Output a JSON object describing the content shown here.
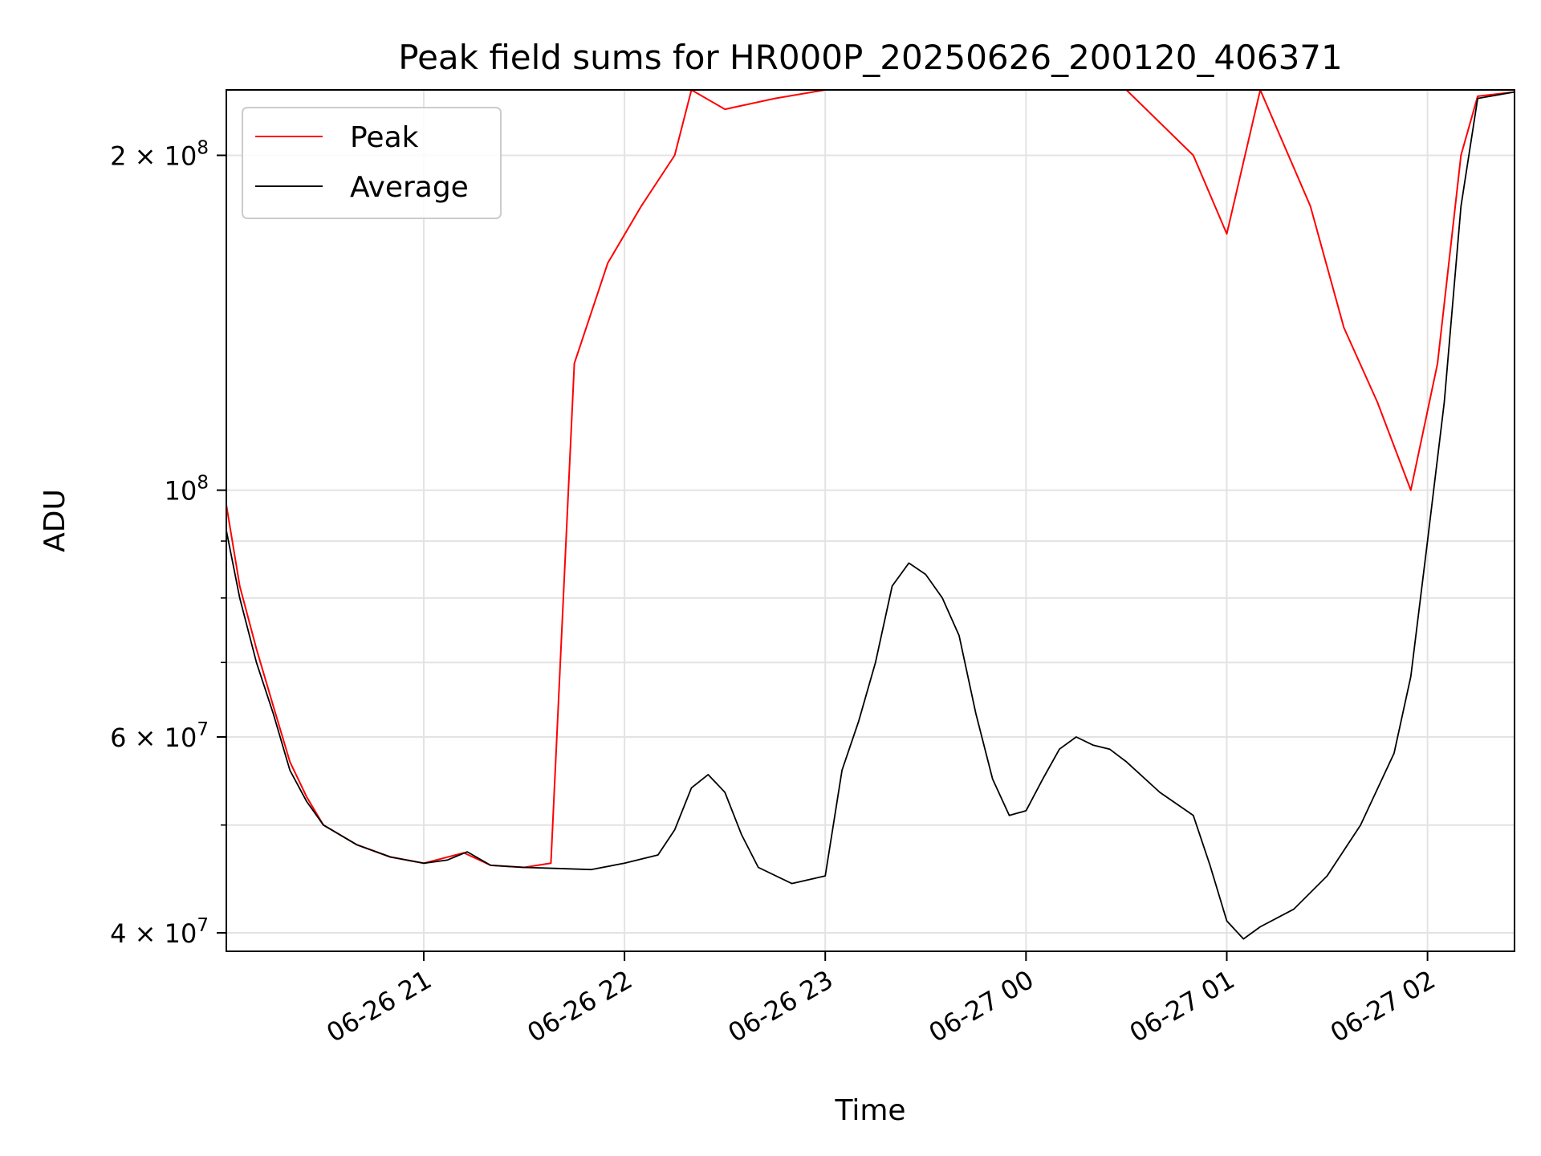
{
  "chart_data": {
    "type": "line",
    "title": "Peak field sums for HR000P_20250626_200120_406371",
    "xlabel": "Time",
    "ylabel": "ADU",
    "yscale": "log",
    "grid": true,
    "legend_position": "top-left",
    "xlim": [
      "2025-06-26 20:01",
      "2025-06-27 02:26"
    ],
    "ylim": [
      38500000,
      229000000
    ],
    "x_ticks": [
      {
        "value": "2025-06-26 21:00",
        "label": "06-26 21"
      },
      {
        "value": "2025-06-26 22:00",
        "label": "06-26 22"
      },
      {
        "value": "2025-06-26 23:00",
        "label": "06-26 23"
      },
      {
        "value": "2025-06-27 00:00",
        "label": "06-27 00"
      },
      {
        "value": "2025-06-27 01:00",
        "label": "06-27 01"
      },
      {
        "value": "2025-06-27 02:00",
        "label": "06-27 02"
      }
    ],
    "y_ticks": [
      {
        "value": 40000000,
        "base": "4 × 10",
        "exp": "7"
      },
      {
        "value": 60000000,
        "base": "6 × 10",
        "exp": "7"
      },
      {
        "value": 100000000,
        "base": "10",
        "exp": "8"
      },
      {
        "value": 200000000,
        "base": "2 × 10",
        "exp": "8"
      }
    ],
    "y_minor_ticks": [
      50000000,
      70000000,
      80000000,
      90000000
    ],
    "series": [
      {
        "name": "Peak",
        "color": "#ff0000",
        "points": [
          [
            "2025-06-26 20:01",
            97000000
          ],
          [
            "2025-06-26 20:05",
            82000000
          ],
          [
            "2025-06-26 20:10",
            72000000
          ],
          [
            "2025-06-26 20:15",
            64000000
          ],
          [
            "2025-06-26 20:20",
            57000000
          ],
          [
            "2025-06-26 20:25",
            53000000
          ],
          [
            "2025-06-26 20:30",
            50000000
          ],
          [
            "2025-06-26 20:40",
            48000000
          ],
          [
            "2025-06-26 20:50",
            46800000
          ],
          [
            "2025-06-26 21:00",
            46200000
          ],
          [
            "2025-06-26 21:12",
            47200000
          ],
          [
            "2025-06-26 21:20",
            46000000
          ],
          [
            "2025-06-26 21:30",
            45800000
          ],
          [
            "2025-06-26 21:38",
            46200000
          ],
          [
            "2025-06-26 21:45",
            130000000
          ],
          [
            "2025-06-26 21:55",
            160000000
          ],
          [
            "2025-06-26 22:05",
            180000000
          ],
          [
            "2025-06-26 22:15",
            200000000
          ],
          [
            "2025-06-26 22:20",
            229000000
          ],
          [
            "2025-06-26 22:30",
            220000000
          ],
          [
            "2025-06-26 22:45",
            225000000
          ],
          [
            "2025-06-26 23:00",
            229000000
          ],
          [
            "2025-06-26 23:30",
            229000000
          ],
          [
            "2025-06-27 00:00",
            229000000
          ],
          [
            "2025-06-27 00:30",
            229000000
          ],
          [
            "2025-06-27 00:50",
            200000000
          ],
          [
            "2025-06-27 01:00",
            170000000
          ],
          [
            "2025-06-27 01:10",
            229000000
          ],
          [
            "2025-06-27 01:25",
            180000000
          ],
          [
            "2025-06-27 01:35",
            140000000
          ],
          [
            "2025-06-27 01:45",
            120000000
          ],
          [
            "2025-06-27 01:55",
            100000000
          ],
          [
            "2025-06-27 02:03",
            130000000
          ],
          [
            "2025-06-27 02:10",
            200000000
          ],
          [
            "2025-06-27 02:15",
            226000000
          ],
          [
            "2025-06-27 02:26",
            228000000
          ]
        ]
      },
      {
        "name": "Average",
        "color": "#000000",
        "points": [
          [
            "2025-06-26 20:01",
            92000000
          ],
          [
            "2025-06-26 20:05",
            80000000
          ],
          [
            "2025-06-26 20:10",
            70000000
          ],
          [
            "2025-06-26 20:15",
            63000000
          ],
          [
            "2025-06-26 20:20",
            56000000
          ],
          [
            "2025-06-26 20:25",
            52500000
          ],
          [
            "2025-06-26 20:30",
            50000000
          ],
          [
            "2025-06-26 20:40",
            48000000
          ],
          [
            "2025-06-26 20:50",
            46800000
          ],
          [
            "2025-06-26 21:00",
            46200000
          ],
          [
            "2025-06-26 21:07",
            46500000
          ],
          [
            "2025-06-26 21:13",
            47300000
          ],
          [
            "2025-06-26 21:20",
            46000000
          ],
          [
            "2025-06-26 21:30",
            45800000
          ],
          [
            "2025-06-26 21:40",
            45700000
          ],
          [
            "2025-06-26 21:50",
            45600000
          ],
          [
            "2025-06-26 22:00",
            46200000
          ],
          [
            "2025-06-26 22:10",
            47000000
          ],
          [
            "2025-06-26 22:15",
            49500000
          ],
          [
            "2025-06-26 22:20",
            54000000
          ],
          [
            "2025-06-26 22:25",
            55500000
          ],
          [
            "2025-06-26 22:30",
            53500000
          ],
          [
            "2025-06-26 22:35",
            49000000
          ],
          [
            "2025-06-26 22:40",
            45800000
          ],
          [
            "2025-06-26 22:50",
            44300000
          ],
          [
            "2025-06-26 23:00",
            45000000
          ],
          [
            "2025-06-26 23:05",
            56000000
          ],
          [
            "2025-06-26 23:10",
            62000000
          ],
          [
            "2025-06-26 23:15",
            70000000
          ],
          [
            "2025-06-26 23:20",
            82000000
          ],
          [
            "2025-06-26 23:25",
            86000000
          ],
          [
            "2025-06-26 23:30",
            84000000
          ],
          [
            "2025-06-26 23:35",
            80000000
          ],
          [
            "2025-06-26 23:40",
            74000000
          ],
          [
            "2025-06-26 23:45",
            63000000
          ],
          [
            "2025-06-26 23:50",
            55000000
          ],
          [
            "2025-06-26 23:55",
            51000000
          ],
          [
            "2025-06-27 00:00",
            51500000
          ],
          [
            "2025-06-27 00:05",
            55000000
          ],
          [
            "2025-06-27 00:10",
            58500000
          ],
          [
            "2025-06-27 00:15",
            60000000
          ],
          [
            "2025-06-27 00:20",
            59000000
          ],
          [
            "2025-06-27 00:25",
            58500000
          ],
          [
            "2025-06-27 00:30",
            57000000
          ],
          [
            "2025-06-27 00:40",
            53500000
          ],
          [
            "2025-06-27 00:50",
            51000000
          ],
          [
            "2025-06-27 00:55",
            46000000
          ],
          [
            "2025-06-27 01:00",
            41000000
          ],
          [
            "2025-06-27 01:05",
            39500000
          ],
          [
            "2025-06-27 01:10",
            40500000
          ],
          [
            "2025-06-27 01:20",
            42000000
          ],
          [
            "2025-06-27 01:30",
            45000000
          ],
          [
            "2025-06-27 01:40",
            50000000
          ],
          [
            "2025-06-27 01:50",
            58000000
          ],
          [
            "2025-06-27 01:55",
            68000000
          ],
          [
            "2025-06-27 02:00",
            90000000
          ],
          [
            "2025-06-27 02:05",
            120000000
          ],
          [
            "2025-06-27 02:10",
            180000000
          ],
          [
            "2025-06-27 02:15",
            225000000
          ],
          [
            "2025-06-27 02:26",
            228000000
          ]
        ]
      }
    ]
  }
}
